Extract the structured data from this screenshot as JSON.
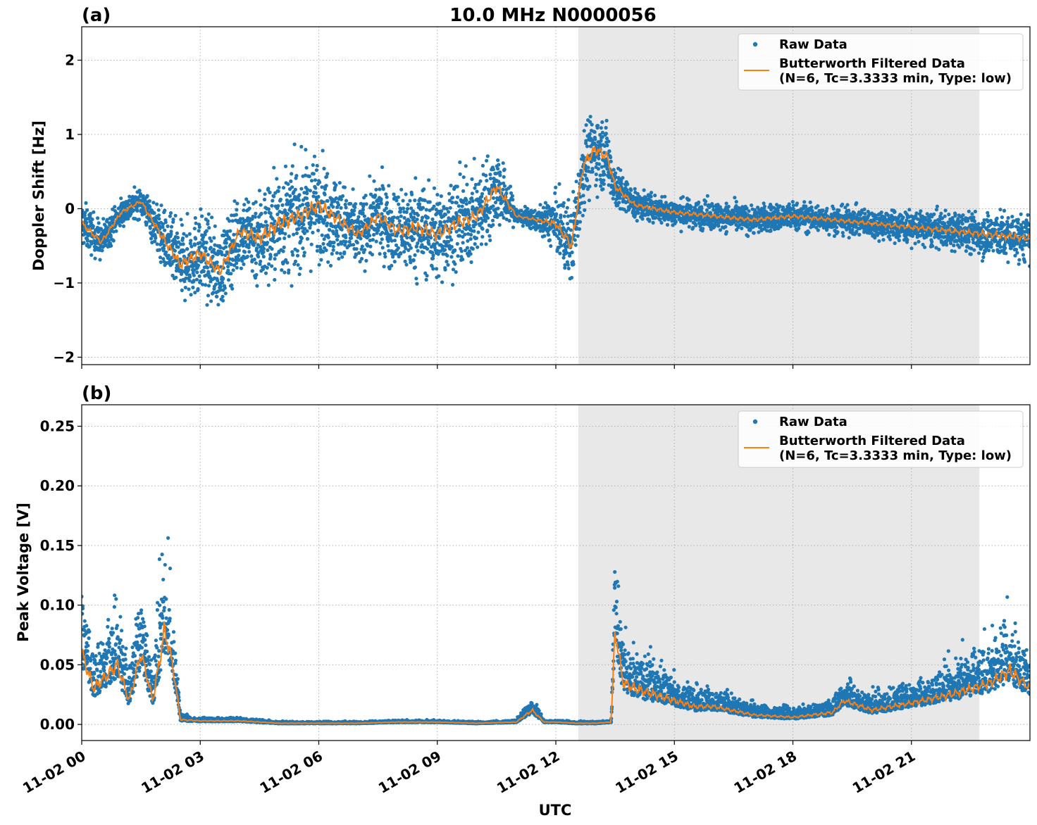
{
  "figure": {
    "title": "10.0 MHz N0000056",
    "xlabel": "UTC",
    "x_tick_labels": [
      "11-02 00",
      "11-02 03",
      "11-02 06",
      "11-02 09",
      "11-02 12",
      "11-02 15",
      "11-02 18",
      "11-02 21"
    ]
  },
  "colors": {
    "raw": "#1f77b4",
    "filtered": "#ff7f0e",
    "shade": "#e8e8e8",
    "grid": "#b0b0b0"
  },
  "chart_data": [
    {
      "panel_label": "(a)",
      "type": "scatter",
      "ylabel": "Doppler Shift [Hz]",
      "xlim_hours": [
        0,
        24
      ],
      "ylim": [
        -2.1,
        2.45
      ],
      "y_ticks": [
        -2,
        -1,
        0,
        1,
        2
      ],
      "y_tick_labels": [
        "−2",
        "−1",
        "0",
        "1",
        "2"
      ],
      "x_tick_hours": [
        0,
        3,
        6,
        9,
        12,
        15,
        18,
        21
      ],
      "grid": true,
      "legend_position": "top-right",
      "shaded_interval_hours": [
        12.57,
        22.72
      ],
      "legend": [
        "Raw Data",
        "Butterworth Filtered Data",
        "(N=6, Tc=3.3333 min, Type: low)"
      ],
      "filtered_hourly": {
        "x": [
          0,
          0.5,
          1,
          1.5,
          2,
          2.5,
          3,
          3.5,
          4,
          4.5,
          5,
          5.5,
          6,
          6.5,
          7,
          7.5,
          8,
          8.5,
          9,
          9.5,
          10,
          10.5,
          11,
          11.5,
          12,
          12.4,
          12.7,
          13,
          13.3,
          13.5,
          14,
          15,
          16,
          17,
          18,
          19,
          20,
          21,
          22,
          23,
          24
        ],
        "y": [
          -0.2,
          -0.45,
          -0.05,
          0.1,
          -0.35,
          -0.75,
          -0.6,
          -0.85,
          -0.3,
          -0.4,
          -0.2,
          -0.1,
          0.05,
          -0.15,
          -0.35,
          -0.1,
          -0.3,
          -0.25,
          -0.35,
          -0.2,
          -0.1,
          0.3,
          -0.1,
          -0.15,
          -0.2,
          -0.5,
          0.6,
          0.8,
          0.7,
          0.3,
          0.05,
          -0.05,
          -0.1,
          -0.15,
          -0.1,
          -0.15,
          -0.2,
          -0.25,
          -0.3,
          -0.35,
          -0.4
        ]
      },
      "raw_spread_hourly": [
        0.25,
        0.2,
        0.15,
        0.15,
        0.3,
        0.4,
        0.45,
        0.4,
        0.4,
        0.55,
        0.6,
        0.55,
        0.55,
        0.45,
        0.35,
        0.4,
        0.45,
        0.5,
        0.5,
        0.5,
        0.45,
        0.45,
        0.1,
        0.1,
        0.3,
        0.45,
        0.45,
        0.4,
        0.35,
        0.25,
        0.15,
        0.15,
        0.15,
        0.15,
        0.15,
        0.15,
        0.15,
        0.18,
        0.2,
        0.25,
        0.25
      ]
    },
    {
      "panel_label": "(b)",
      "type": "scatter",
      "ylabel": "Peak Voltage [V]",
      "xlim_hours": [
        0,
        24
      ],
      "ylim": [
        -0.0135,
        0.268
      ],
      "y_ticks": [
        0,
        0.05,
        0.1,
        0.15,
        0.2,
        0.25
      ],
      "y_tick_labels": [
        "0.00",
        "0.05",
        "0.10",
        "0.15",
        "0.20",
        "0.25"
      ],
      "x_tick_hours": [
        0,
        3,
        6,
        9,
        12,
        15,
        18,
        21
      ],
      "grid": true,
      "legend_position": "top-right",
      "shaded_interval_hours": [
        12.57,
        22.72
      ],
      "legend": [
        "Raw Data",
        "Butterworth Filtered Data",
        "(N=6, Tc=3.3333 min, Type: low)"
      ],
      "filtered_hourly": {
        "x": [
          0,
          0.3,
          0.6,
          0.9,
          1.2,
          1.5,
          1.8,
          2.1,
          2.3,
          2.5,
          3,
          4,
          5,
          6,
          7,
          8,
          9,
          10,
          11,
          11.4,
          11.7,
          12,
          12.5,
          13,
          13.4,
          13.5,
          13.7,
          14,
          14.5,
          15,
          15.5,
          16,
          17,
          18,
          19,
          19.3,
          20,
          21,
          22,
          22.5,
          23,
          23.5,
          24
        ],
        "y": [
          0.06,
          0.03,
          0.04,
          0.05,
          0.02,
          0.06,
          0.02,
          0.08,
          0.05,
          0.004,
          0.003,
          0.003,
          0.001,
          0.001,
          0.001,
          0.002,
          0.002,
          0.001,
          0.002,
          0.012,
          0.002,
          0.002,
          0.001,
          0.001,
          0.002,
          0.08,
          0.035,
          0.03,
          0.025,
          0.02,
          0.015,
          0.015,
          0.008,
          0.006,
          0.01,
          0.02,
          0.012,
          0.018,
          0.025,
          0.03,
          0.035,
          0.045,
          0.03
        ]
      },
      "raw_spread_hourly": [
        0.04,
        0.025,
        0.03,
        0.035,
        0.02,
        0.035,
        0.02,
        0.06,
        0.03,
        0.004,
        0.002,
        0.002,
        0.001,
        0.001,
        0.001,
        0.001,
        0.001,
        0.001,
        0.001,
        0.008,
        0.001,
        0.001,
        0.001,
        0.001,
        0.001,
        0.05,
        0.025,
        0.025,
        0.02,
        0.015,
        0.012,
        0.01,
        0.006,
        0.005,
        0.008,
        0.012,
        0.01,
        0.012,
        0.018,
        0.02,
        0.025,
        0.035,
        0.02
      ]
    }
  ]
}
